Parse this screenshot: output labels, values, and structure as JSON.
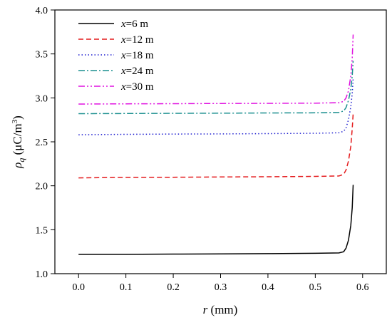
{
  "chart_data": {
    "type": "line",
    "title": "",
    "xlabel": {
      "var": "r",
      "unit": " (mm)"
    },
    "ylabel": {
      "var": "ρ",
      "sub": "q",
      "unit": " (μC/m",
      "sup": "3",
      "close": ")"
    },
    "xlim": [
      -0.05,
      0.65
    ],
    "ylim": [
      1.0,
      4.0
    ],
    "xticks": [
      0.0,
      0.1,
      0.2,
      0.3,
      0.4,
      0.5,
      0.6
    ],
    "xtick_labels": [
      "0.0",
      "0.1",
      "0.2",
      "0.3",
      "0.4",
      "0.5",
      "0.6"
    ],
    "yticks": [
      1.0,
      1.5,
      2.0,
      2.5,
      3.0,
      3.5,
      4.0
    ],
    "ytick_labels": [
      "1.0",
      "1.5",
      "2.0",
      "2.5",
      "3.0",
      "3.5",
      "4.0"
    ],
    "grid": false,
    "legend_position": "top-left",
    "series": [
      {
        "name": "x=6 m",
        "name_var": "x",
        "name_rest": "=6 m",
        "color": "#000000",
        "dash": "solid",
        "x": [
          0.0,
          0.1,
          0.2,
          0.3,
          0.4,
          0.5,
          0.55,
          0.56,
          0.565,
          0.57,
          0.575,
          0.578,
          0.58
        ],
        "y": [
          1.22,
          1.22,
          1.223,
          1.225,
          1.228,
          1.232,
          1.236,
          1.25,
          1.29,
          1.38,
          1.55,
          1.75,
          2.01
        ]
      },
      {
        "name": "x=12 m",
        "name_var": "x",
        "name_rest": "=12 m",
        "color": "#e41a1c",
        "dash": "dashed",
        "x": [
          0.0,
          0.1,
          0.2,
          0.3,
          0.4,
          0.5,
          0.55,
          0.56,
          0.565,
          0.57,
          0.575,
          0.578,
          0.58
        ],
        "y": [
          2.09,
          2.095,
          2.097,
          2.1,
          2.103,
          2.107,
          2.112,
          2.13,
          2.18,
          2.28,
          2.45,
          2.65,
          2.82
        ]
      },
      {
        "name": "x=18 m",
        "name_var": "x",
        "name_rest": "=18 m",
        "color": "#1f1fd0",
        "dash": "dotted",
        "x": [
          0.0,
          0.1,
          0.2,
          0.3,
          0.4,
          0.5,
          0.55,
          0.56,
          0.565,
          0.57,
          0.575,
          0.578,
          0.58
        ],
        "y": [
          2.58,
          2.585,
          2.588,
          2.59,
          2.593,
          2.597,
          2.603,
          2.62,
          2.66,
          2.75,
          2.9,
          3.05,
          3.22
        ]
      },
      {
        "name": "x=24 m",
        "name_var": "x",
        "name_rest": "=24 m",
        "color": "#1a8f8f",
        "dash": "dashdot",
        "x": [
          0.0,
          0.1,
          0.2,
          0.3,
          0.4,
          0.5,
          0.55,
          0.56,
          0.565,
          0.57,
          0.575,
          0.578,
          0.58
        ],
        "y": [
          2.82,
          2.822,
          2.824,
          2.826,
          2.828,
          2.83,
          2.835,
          2.85,
          2.89,
          2.97,
          3.1,
          3.25,
          3.42
        ]
      },
      {
        "name": "x=30 m",
        "name_var": "x",
        "name_rest": "=30 m",
        "color": "#e010e0",
        "dash": "dashdotdot",
        "x": [
          0.0,
          0.1,
          0.2,
          0.3,
          0.4,
          0.5,
          0.55,
          0.56,
          0.565,
          0.57,
          0.575,
          0.578,
          0.58
        ],
        "y": [
          2.93,
          2.932,
          2.934,
          2.936,
          2.938,
          2.94,
          2.945,
          2.96,
          3.0,
          3.08,
          3.25,
          3.45,
          3.72
        ]
      }
    ]
  }
}
